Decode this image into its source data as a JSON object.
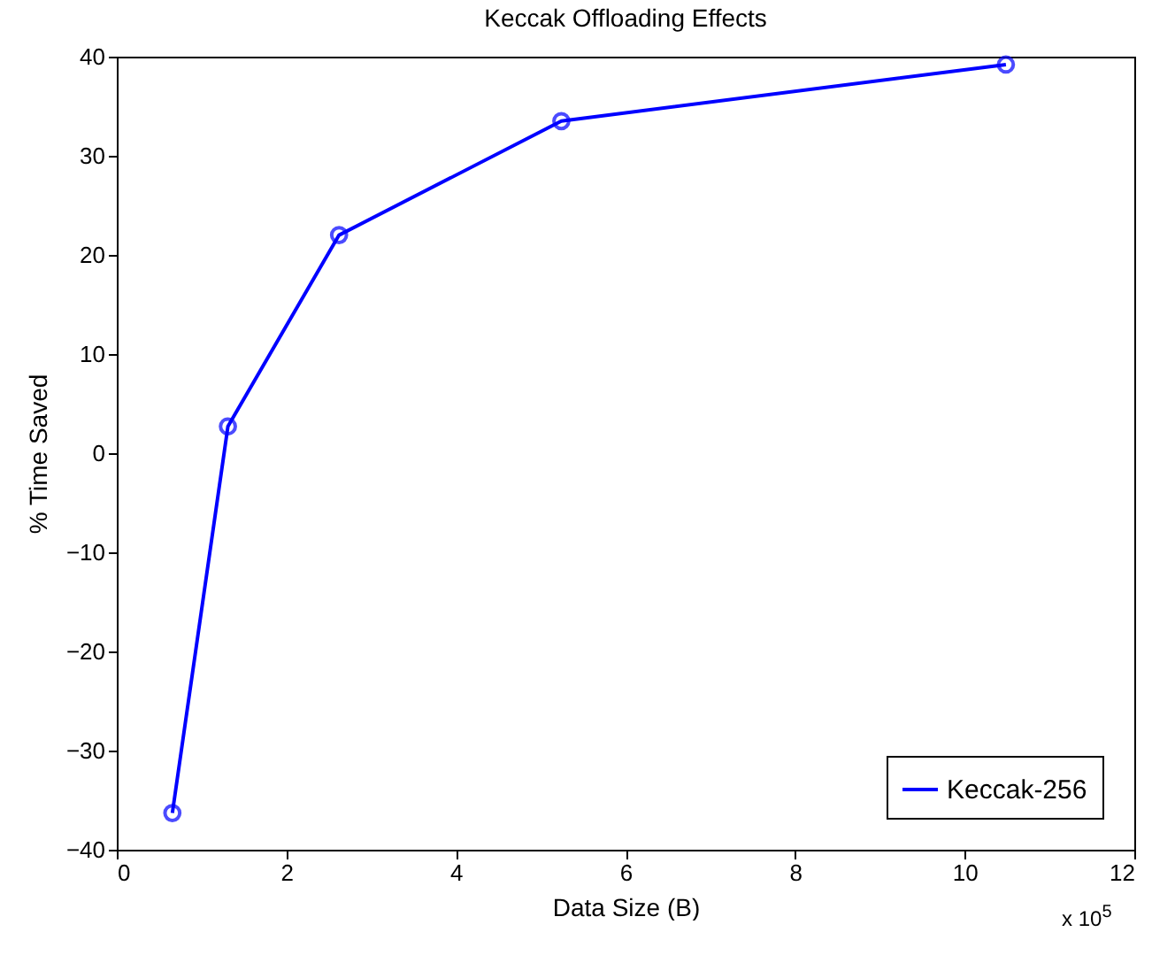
{
  "chart_data": {
    "type": "line",
    "title": "Keccak Offloading Effects",
    "xlabel": "Data Size (B)",
    "ylabel": "% Time Saved",
    "x": [
      0.65536,
      1.31072,
      2.62144,
      5.24288,
      10.48576
    ],
    "series": [
      {
        "name": "Keccak-256",
        "color": "#0000ff",
        "values": [
          -36.3,
          2.7,
          22.0,
          33.5,
          39.2
        ]
      }
    ],
    "xlim": [
      0,
      12
    ],
    "xticks": [
      0,
      2,
      4,
      6,
      8,
      10,
      12
    ],
    "ylim": [
      -40,
      40
    ],
    "yticks": [
      -40,
      -30,
      -20,
      -10,
      0,
      10,
      20,
      30,
      40
    ],
    "grid": false,
    "legend": "bottom right",
    "marker": "circle",
    "line_style": "solid",
    "annotations": [
      "x 10$^{5}$"
    ]
  }
}
